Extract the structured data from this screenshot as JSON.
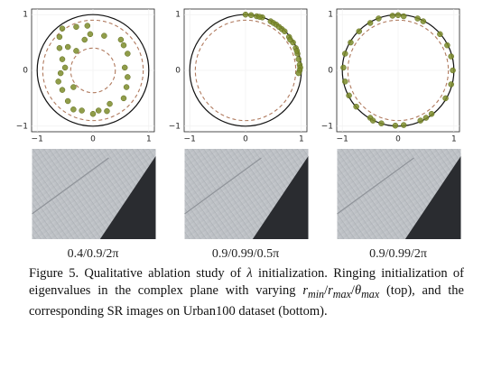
{
  "chart_data": [
    {
      "type": "scatter",
      "label": "0.4/0.9/2π",
      "color": "#7d8c2a",
      "ring_color": "#b07a5e",
      "outer_radius": 1,
      "rings": [
        0.4,
        0.9
      ],
      "xlim": [
        -1.1,
        1.1
      ],
      "ylim": [
        -1.1,
        1.1
      ],
      "xticks": [
        {
          "value": -1,
          "label": "−1"
        },
        0,
        1
      ],
      "yticks": [
        1,
        0,
        {
          "value": -1,
          "label": "−1"
        }
      ],
      "x": [
        -0.55,
        -0.3,
        -0.1,
        -0.05,
        -0.15,
        -0.45,
        -0.6,
        -0.55,
        -0.5,
        -0.58,
        -0.62,
        -0.55,
        -0.45,
        -0.35,
        -0.2,
        0.0,
        0.1,
        0.25,
        0.3,
        0.55,
        0.6,
        0.62,
        0.57,
        0.62,
        0.55,
        0.5,
        -0.3,
        -0.35,
        0.2,
        -0.6
      ],
      "values": [
        0.75,
        0.78,
        0.8,
        0.65,
        0.55,
        0.42,
        0.4,
        0.2,
        0.05,
        -0.05,
        -0.2,
        -0.35,
        -0.55,
        -0.7,
        -0.72,
        -0.78,
        -0.72,
        -0.73,
        -0.6,
        -0.5,
        -0.3,
        -0.12,
        0.05,
        0.3,
        0.45,
        0.55,
        0.35,
        -0.3,
        0.62,
        0.6
      ]
    },
    {
      "type": "scatter",
      "label": "0.9/0.99/0.5π",
      "color": "#7d8c2a",
      "ring_color": "#b07a5e",
      "outer_radius": 1,
      "rings": [
        0.9
      ],
      "xlim": [
        -1.1,
        1.1
      ],
      "ylim": [
        -1.1,
        1.1
      ],
      "xticks": [
        {
          "value": -1,
          "label": "−1"
        },
        0,
        1
      ],
      "yticks": [
        1,
        0,
        {
          "value": -1,
          "label": "−1"
        }
      ],
      "x": [
        0,
        0.1,
        0.2,
        0.3,
        0.45,
        0.5,
        0.55,
        0.65,
        0.7,
        0.78,
        0.85,
        0.9,
        0.93,
        0.95,
        0.97,
        0.98,
        0.97,
        0.95,
        0.6,
        0.8,
        0.92,
        0.25
      ],
      "values": [
        1,
        0.99,
        0.97,
        0.95,
        0.88,
        0.85,
        0.82,
        0.74,
        0.7,
        0.6,
        0.5,
        0.4,
        0.3,
        0.2,
        0.1,
        0.05,
        0,
        -0.05,
        0.78,
        0.55,
        0.35,
        0.96
      ]
    },
    {
      "type": "scatter",
      "label": "0.9/0.99/2π",
      "color": "#7d8c2a",
      "ring_color": "#b07a5e",
      "outer_radius": 1,
      "rings": [
        0.9
      ],
      "xlim": [
        -1.1,
        1.1
      ],
      "ylim": [
        -1.1,
        1.1
      ],
      "xticks": [
        {
          "value": -1,
          "label": "−1"
        },
        0,
        1
      ],
      "yticks": [
        1,
        0,
        {
          "value": -1,
          "label": "−1"
        }
      ],
      "x": [
        -0.5,
        -0.35,
        -0.1,
        0,
        0.1,
        0.35,
        0.45,
        0.75,
        0.88,
        0.95,
        0.98,
        0.95,
        0.85,
        0.6,
        0.4,
        0.1,
        -0.05,
        -0.3,
        -0.5,
        -0.75,
        -0.88,
        -0.95,
        -0.98,
        -0.95,
        -0.85,
        -0.7,
        -0.45,
        0.5
      ],
      "values": [
        0.85,
        0.93,
        0.98,
        0.99,
        0.97,
        0.93,
        0.88,
        0.65,
        0.45,
        0.25,
        0.0,
        -0.25,
        -0.5,
        -0.78,
        -0.9,
        -0.98,
        -0.99,
        -0.95,
        -0.85,
        -0.65,
        -0.45,
        -0.2,
        0.05,
        0.3,
        0.5,
        0.7,
        -0.9,
        -0.85
      ]
    }
  ],
  "caption": [
    "Figure 5. Qualitative ablation study of ",
    "λ",
    " initialization. Ringing initialization of eigenvalues in the complex plane with varying ",
    "r",
    "min",
    "/",
    "r",
    "max",
    "/",
    "θ",
    "max",
    " (top), and the corresponding SR images on Urban100 dataset (bottom)."
  ]
}
